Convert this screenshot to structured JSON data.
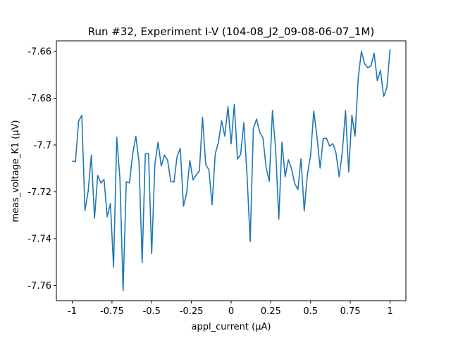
{
  "chart_data": {
    "type": "line",
    "title": "Run #32, Experiment I-V (104-08_J2_09-08-06-07_1M)",
    "xlabel": "appl_current (µA)",
    "ylabel": "meas_voltage_K1 (µV)",
    "xlim": [
      -1.1,
      1.1
    ],
    "ylim": [
      -7.7665,
      -7.6555
    ],
    "grid": false,
    "xticks": [
      {
        "value": -1,
        "label": "-1"
      },
      {
        "value": -0.75,
        "label": "-0.75"
      },
      {
        "value": -0.5,
        "label": "-0.5"
      },
      {
        "value": -0.25,
        "label": "-0.25"
      },
      {
        "value": 0,
        "label": "0"
      },
      {
        "value": 0.25,
        "label": "0.25"
      },
      {
        "value": 0.5,
        "label": "0.5"
      },
      {
        "value": 0.75,
        "label": "0.75"
      },
      {
        "value": 1,
        "label": "1"
      }
    ],
    "yticks": [
      {
        "value": -7.76,
        "label": "-7.76"
      },
      {
        "value": -7.74,
        "label": "-7.74"
      },
      {
        "value": -7.72,
        "label": "-7.72"
      },
      {
        "value": -7.7,
        "label": "-7.7"
      },
      {
        "value": -7.68,
        "label": "-7.68"
      },
      {
        "value": -7.66,
        "label": "-7.66"
      }
    ],
    "series": [
      {
        "color": "#1f77b4",
        "x": [
          -1.0,
          -0.98,
          -0.96,
          -0.94,
          -0.92,
          -0.9,
          -0.88,
          -0.86,
          -0.84,
          -0.82,
          -0.8,
          -0.78,
          -0.76,
          -0.74,
          -0.72,
          -0.7,
          -0.68,
          -0.66,
          -0.64,
          -0.62,
          -0.6,
          -0.58,
          -0.56,
          -0.54,
          -0.52,
          -0.5,
          -0.48,
          -0.46,
          -0.44,
          -0.42,
          -0.4,
          -0.38,
          -0.36,
          -0.34,
          -0.32,
          -0.3,
          -0.28,
          -0.26,
          -0.24,
          -0.22,
          -0.2,
          -0.18,
          -0.16,
          -0.14,
          -0.12,
          -0.1,
          -0.08,
          -0.06,
          -0.04,
          -0.02,
          0.0,
          0.02,
          0.04,
          0.06,
          0.08,
          0.1,
          0.12,
          0.14,
          0.16,
          0.18,
          0.2,
          0.22,
          0.24,
          0.26,
          0.28,
          0.3,
          0.32,
          0.34,
          0.36,
          0.38,
          0.4,
          0.42,
          0.44,
          0.46,
          0.48,
          0.5,
          0.52,
          0.54,
          0.56,
          0.58,
          0.6,
          0.62,
          0.64,
          0.66,
          0.68,
          0.7,
          0.72,
          0.74,
          0.76,
          0.78,
          0.8,
          0.82,
          0.84,
          0.86,
          0.88,
          0.9,
          0.92,
          0.94,
          0.96,
          0.98,
          1.0
        ],
        "y": [
          -7.7069,
          -7.7071,
          -7.6898,
          -7.6873,
          -7.728,
          -7.7198,
          -7.7043,
          -7.7313,
          -7.713,
          -7.7162,
          -7.7147,
          -7.7307,
          -7.725,
          -7.7522,
          -7.6966,
          -7.7143,
          -7.7622,
          -7.7157,
          -7.7162,
          -7.704,
          -7.6963,
          -7.7071,
          -7.7502,
          -7.7037,
          -7.7037,
          -7.7464,
          -7.7081,
          -7.6988,
          -7.709,
          -7.7043,
          -7.7065,
          -7.7155,
          -7.7159,
          -7.7048,
          -7.7014,
          -7.7261,
          -7.7205,
          -7.7066,
          -7.7149,
          -7.7128,
          -7.7111,
          -7.6882,
          -7.7083,
          -7.7106,
          -7.7255,
          -7.7037,
          -7.6989,
          -7.6896,
          -7.6962,
          -7.6836,
          -7.6995,
          -7.6826,
          -7.7061,
          -7.7039,
          -7.6904,
          -7.7129,
          -7.7413,
          -7.6929,
          -7.6889,
          -7.6946,
          -7.6969,
          -7.7095,
          -7.7155,
          -7.6852,
          -7.7017,
          -7.7317,
          -7.6988,
          -7.7136,
          -7.7063,
          -7.7101,
          -7.7164,
          -7.7191,
          -7.7059,
          -7.7282,
          -7.7126,
          -7.7045,
          -7.6855,
          -7.6963,
          -7.7099,
          -7.6972,
          -7.6971,
          -7.7005,
          -7.6994,
          -7.7034,
          -7.7136,
          -7.7029,
          -7.6852,
          -7.7115,
          -7.6873,
          -7.6962,
          -7.6714,
          -7.66,
          -7.6652,
          -7.667,
          -7.6662,
          -7.6607,
          -7.6725,
          -7.6681,
          -7.6793,
          -7.6756,
          -7.6593
        ]
      }
    ]
  }
}
